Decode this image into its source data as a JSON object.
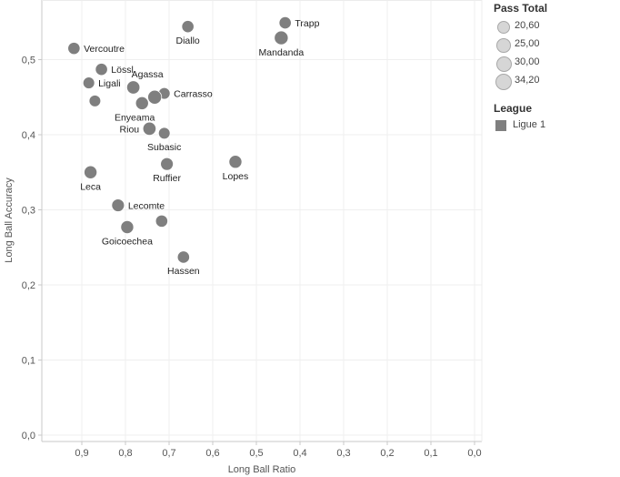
{
  "chart_data": {
    "type": "scatter",
    "xlabel": "Long Ball Ratio",
    "ylabel": "Long Ball Accuracy",
    "x_reversed": true,
    "xlim": [
      0.0,
      0.95
    ],
    "ylim": [
      0.0,
      0.58
    ],
    "x_ticks": [
      0.9,
      0.8,
      0.7,
      0.6,
      0.5,
      0.4,
      0.3,
      0.2,
      0.1,
      0.0
    ],
    "x_tick_labels": [
      "0,9",
      "0,8",
      "0,7",
      "0,6",
      "0,5",
      "0,4",
      "0,3",
      "0,2",
      "0,1",
      "0,0"
    ],
    "y_ticks": [
      0.0,
      0.1,
      0.2,
      0.3,
      0.4,
      0.5
    ],
    "y_tick_labels": [
      "0,0",
      "0,1",
      "0,2",
      "0,3",
      "0,4",
      "0,5"
    ],
    "grid": true,
    "legend_position": "right",
    "point_color": "#7f7f7f",
    "points": [
      {
        "label": "Trapp",
        "x": 0.434,
        "y": 0.549,
        "size": 24,
        "label_pos": "right"
      },
      {
        "label": "Mandanda",
        "x": 0.443,
        "y": 0.529,
        "size": 31,
        "label_pos": "below"
      },
      {
        "label": "Diallo",
        "x": 0.657,
        "y": 0.544,
        "size": 24,
        "label_pos": "below"
      },
      {
        "label": "Vercoutre",
        "x": 0.918,
        "y": 0.515,
        "size": 24,
        "label_pos": "right"
      },
      {
        "label": "Lössl",
        "x": 0.855,
        "y": 0.487,
        "size": 24,
        "label_pos": "right"
      },
      {
        "label": "Agassa",
        "x": 0.782,
        "y": 0.463,
        "size": 28,
        "label_pos": "above-right"
      },
      {
        "label": "Ligali",
        "x": 0.884,
        "y": 0.469,
        "size": 22,
        "label_pos": "right"
      },
      {
        "label": "Carrasso",
        "x": 0.711,
        "y": 0.455,
        "size": 22,
        "label_pos": "right"
      },
      {
        "label": "",
        "x": 0.733,
        "y": 0.45,
        "size": 31
      },
      {
        "label": "",
        "x": 0.87,
        "y": 0.445,
        "size": 22
      },
      {
        "label": "Enyeama",
        "x": 0.762,
        "y": 0.442,
        "size": 27,
        "label_pos": "below-left"
      },
      {
        "label": "Riou",
        "x": 0.745,
        "y": 0.408,
        "size": 28,
        "label_pos": "left"
      },
      {
        "label": "Subasic",
        "x": 0.711,
        "y": 0.402,
        "size": 22,
        "label_pos": "below"
      },
      {
        "label": "Lopes",
        "x": 0.548,
        "y": 0.364,
        "size": 27,
        "label_pos": "below"
      },
      {
        "label": "Ruffier",
        "x": 0.705,
        "y": 0.361,
        "size": 26,
        "label_pos": "below"
      },
      {
        "label": "Leca",
        "x": 0.88,
        "y": 0.35,
        "size": 27,
        "label_pos": "below"
      },
      {
        "label": "Lecomte",
        "x": 0.817,
        "y": 0.306,
        "size": 26,
        "label_pos": "right"
      },
      {
        "label": "",
        "x": 0.717,
        "y": 0.285,
        "size": 24
      },
      {
        "label": "Goicoechea",
        "x": 0.796,
        "y": 0.277,
        "size": 27,
        "label_pos": "below"
      },
      {
        "label": "Hassen",
        "x": 0.667,
        "y": 0.237,
        "size": 24,
        "label_pos": "below"
      }
    ]
  },
  "legend": {
    "size_title": "Pass Total",
    "size_items": [
      {
        "label": "20,60",
        "value": 20.6
      },
      {
        "label": "25,00",
        "value": 25.0
      },
      {
        "label": "30,00",
        "value": 30.0
      },
      {
        "label": "34,20",
        "value": 34.2
      }
    ],
    "color_title": "League",
    "color_items": [
      {
        "label": "Ligue 1",
        "color": "#7f7f7f"
      }
    ]
  }
}
